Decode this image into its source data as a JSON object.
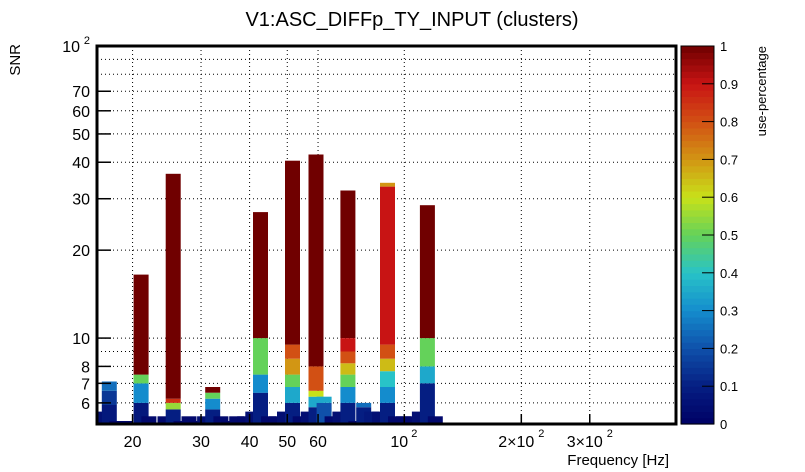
{
  "chart_data": {
    "type": "heatmap",
    "title": "V1:ASC_DIFFp_TY_INPUT (clusters)",
    "xlabel": "Frequency [Hz]",
    "ylabel": "SNR",
    "colorbar_label": "use-percentage",
    "xscale": "log",
    "yscale": "log",
    "xlim": [
      16.2,
      500
    ],
    "ylim": [
      5.08,
      100
    ],
    "grid": true,
    "x_ticks": [
      {
        "value": 20,
        "label": "20"
      },
      {
        "value": 30,
        "label": "30"
      },
      {
        "value": 40,
        "label": "40"
      },
      {
        "value": 50,
        "label": "50"
      },
      {
        "value": 60,
        "label": "60"
      },
      {
        "value": 100,
        "label": "10",
        "exp": "2"
      },
      {
        "value": 200,
        "label": "2×10",
        "exp": "2"
      },
      {
        "value": 300,
        "label": "3×10",
        "exp": "2"
      }
    ],
    "y_ticks": [
      {
        "value": 100,
        "label": "10",
        "exp": "2"
      },
      {
        "value": 70,
        "label": "70"
      },
      {
        "value": 60,
        "label": "60"
      },
      {
        "value": 50,
        "label": "50"
      },
      {
        "value": 40,
        "label": "40"
      },
      {
        "value": 30,
        "label": "30"
      },
      {
        "value": 20,
        "label": "20"
      },
      {
        "value": 10,
        "label": "10"
      },
      {
        "value": 8,
        "label": "8"
      },
      {
        "value": 7,
        "label": "7"
      },
      {
        "value": 6,
        "label": "6"
      }
    ],
    "colorbar_ticks": [
      "0",
      "0.1",
      "0.2",
      "0.3",
      "0.4",
      "0.5",
      "0.6",
      "0.7",
      "0.8",
      "0.9",
      "1"
    ],
    "colorbar_range": [
      0,
      1
    ],
    "columns": [
      {
        "f": 16.6,
        "segments": [
          [
            5.08,
            5.6,
            0.05
          ]
        ]
      },
      {
        "f": 17.4,
        "segments": [
          [
            5.08,
            5.9,
            0.08
          ],
          [
            5.9,
            6.6,
            0.15
          ],
          [
            6.6,
            7.1,
            0.25
          ]
        ]
      },
      {
        "f": 18.2,
        "segments": [
          [
            5.08,
            5.2,
            0.02
          ]
        ]
      },
      {
        "f": 19.1,
        "segments": [
          [
            5.08,
            5.2,
            0.02
          ]
        ]
      },
      {
        "f": 21.0,
        "segments": [
          [
            5.08,
            6.0,
            0.08
          ],
          [
            6.0,
            7.0,
            0.3
          ],
          [
            7.0,
            7.5,
            0.5
          ],
          [
            7.5,
            16.5,
            1.0
          ]
        ]
      },
      {
        "f": 22.0,
        "segments": [
          [
            5.08,
            5.4,
            0.03
          ]
        ]
      },
      {
        "f": 24.2,
        "segments": [
          [
            5.08,
            5.4,
            0.03
          ]
        ]
      },
      {
        "f": 25.4,
        "segments": [
          [
            5.08,
            5.7,
            0.1
          ],
          [
            5.7,
            6.0,
            0.55
          ],
          [
            6.0,
            6.2,
            0.85
          ],
          [
            6.2,
            36.5,
            1.0
          ]
        ]
      },
      {
        "f": 26.6,
        "segments": [
          [
            5.08,
            5.2,
            0.02
          ]
        ]
      },
      {
        "f": 27.9,
        "segments": [
          [
            5.08,
            5.4,
            0.03
          ]
        ]
      },
      {
        "f": 29.2,
        "segments": [
          [
            5.08,
            5.2,
            0.02
          ]
        ]
      },
      {
        "f": 30.6,
        "segments": [
          [
            5.08,
            5.4,
            0.05
          ]
        ]
      },
      {
        "f": 32.1,
        "segments": [
          [
            5.08,
            5.7,
            0.1
          ],
          [
            5.7,
            6.2,
            0.3
          ],
          [
            6.2,
            6.5,
            0.5
          ],
          [
            6.5,
            6.8,
            1.0
          ]
        ]
      },
      {
        "f": 33.7,
        "segments": [
          [
            5.08,
            5.4,
            0.03
          ]
        ]
      },
      {
        "f": 35.3,
        "segments": [
          [
            5.08,
            5.2,
            0.02
          ]
        ]
      },
      {
        "f": 37.0,
        "segments": [
          [
            5.08,
            5.4,
            0.03
          ]
        ]
      },
      {
        "f": 38.8,
        "segments": [
          [
            5.08,
            5.4,
            0.03
          ]
        ]
      },
      {
        "f": 40.7,
        "segments": [
          [
            5.08,
            5.6,
            0.05
          ]
        ]
      },
      {
        "f": 42.6,
        "segments": [
          [
            5.08,
            6.5,
            0.1
          ],
          [
            6.5,
            7.5,
            0.3
          ],
          [
            7.5,
            10,
            0.5
          ],
          [
            10,
            27,
            1.0
          ]
        ]
      },
      {
        "f": 44.7,
        "segments": [
          [
            5.08,
            5.4,
            0.03
          ]
        ]
      },
      {
        "f": 46.8,
        "segments": [
          [
            5.08,
            5.4,
            0.03
          ]
        ]
      },
      {
        "f": 49.1,
        "segments": [
          [
            5.08,
            5.6,
            0.05
          ]
        ]
      },
      {
        "f": 51.5,
        "segments": [
          [
            5.08,
            6.0,
            0.1
          ],
          [
            6.0,
            6.8,
            0.35
          ],
          [
            6.8,
            7.5,
            0.5
          ],
          [
            7.5,
            8.5,
            0.7
          ],
          [
            8.5,
            9.5,
            0.8
          ],
          [
            9.5,
            40.5,
            1.0
          ]
        ]
      },
      {
        "f": 53.9,
        "segments": [
          [
            5.08,
            5.4,
            0.03
          ]
        ]
      },
      {
        "f": 56.5,
        "segments": [
          [
            5.08,
            5.6,
            0.05
          ]
        ]
      },
      {
        "f": 59.2,
        "segments": [
          [
            5.08,
            5.8,
            0.1
          ],
          [
            5.8,
            6.3,
            0.35
          ],
          [
            6.3,
            6.6,
            0.6
          ],
          [
            6.6,
            8.0,
            0.8
          ],
          [
            8.0,
            42.5,
            1.0
          ]
        ]
      },
      {
        "f": 62.1,
        "segments": [
          [
            5.08,
            6.0,
            0.2
          ],
          [
            6.0,
            6.3,
            0.35
          ]
        ]
      },
      {
        "f": 65.1,
        "segments": [
          [
            5.08,
            5.4,
            0.03
          ]
        ]
      },
      {
        "f": 68.2,
        "segments": [
          [
            5.08,
            5.6,
            0.05
          ]
        ]
      },
      {
        "f": 71.5,
        "segments": [
          [
            5.08,
            6.0,
            0.1
          ],
          [
            6.0,
            6.8,
            0.3
          ],
          [
            6.8,
            7.5,
            0.5
          ],
          [
            7.5,
            8.2,
            0.65
          ],
          [
            8.2,
            9.0,
            0.8
          ],
          [
            9.0,
            10,
            0.9
          ],
          [
            10,
            32,
            1.0
          ]
        ]
      },
      {
        "f": 74.9,
        "segments": [
          [
            5.08,
            5.2,
            0.02
          ]
        ]
      },
      {
        "f": 78.5,
        "segments": [
          [
            5.08,
            5.8,
            0.1
          ],
          [
            5.8,
            6.0,
            0.25
          ]
        ]
      },
      {
        "f": 82.3,
        "segments": [
          [
            5.08,
            5.6,
            0.08
          ]
        ]
      },
      {
        "f": 86.3,
        "segments": [
          [
            5.08,
            5.6,
            0.05
          ]
        ]
      },
      {
        "f": 90.4,
        "segments": [
          [
            5.08,
            6.0,
            0.1
          ],
          [
            6.0,
            6.8,
            0.3
          ],
          [
            6.8,
            7.7,
            0.4
          ],
          [
            7.7,
            8.5,
            0.65
          ],
          [
            8.5,
            9.5,
            0.8
          ],
          [
            9.5,
            33,
            0.9
          ],
          [
            33,
            34,
            0.7
          ]
        ]
      },
      {
        "f": 94.8,
        "segments": [
          [
            5.08,
            5.4,
            0.03
          ]
        ]
      },
      {
        "f": 99.4,
        "segments": [
          [
            5.08,
            5.4,
            0.03
          ]
        ]
      },
      {
        "f": 104.2,
        "segments": [
          [
            5.08,
            5.4,
            0.03
          ]
        ]
      },
      {
        "f": 109.2,
        "segments": [
          [
            5.08,
            5.6,
            0.05
          ]
        ]
      },
      {
        "f": 114.5,
        "segments": [
          [
            5.08,
            7.0,
            0.1
          ],
          [
            7.0,
            8.0,
            0.35
          ],
          [
            8.0,
            10.0,
            0.5
          ],
          [
            10.0,
            28.5,
            1.0
          ]
        ]
      },
      {
        "f": 120.0,
        "segments": [
          [
            5.08,
            5.4,
            0.03
          ]
        ]
      }
    ]
  }
}
